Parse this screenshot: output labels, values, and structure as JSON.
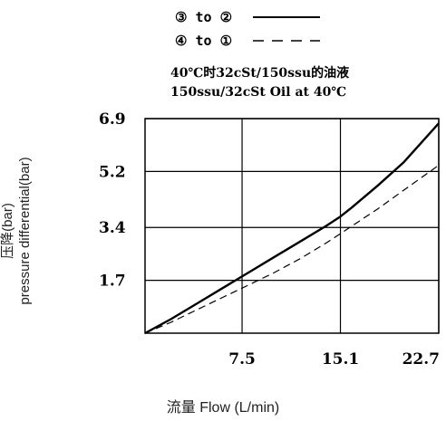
{
  "legend": [
    {
      "label": "③ to ②",
      "style": "solid"
    },
    {
      "label": "④ to ①",
      "style": "dashed"
    }
  ],
  "condition_cn": "40℃时32cSt/150ssu的油液",
  "condition_en": "150ssu/32cSt Oil at 40℃",
  "ylabel_cn": "压降(bar)",
  "ylabel_en": "pressure differential(bar)",
  "xlabel": "流量 Flow (L/min)",
  "chart_data": {
    "type": "line",
    "title": "",
    "xlabel": "流量 Flow (L/min)",
    "ylabel": "压降(bar) pressure differential(bar)",
    "xlim": [
      0,
      22.7
    ],
    "ylim": [
      0,
      6.9
    ],
    "x_ticks": [
      7.5,
      15.1,
      22.7
    ],
    "x_tick_labels": [
      "7.5",
      "15.1",
      "22.7"
    ],
    "y_ticks": [
      1.7,
      3.4,
      5.2,
      6.9
    ],
    "y_tick_labels": [
      "1.7",
      "3.4",
      "5.2",
      "6.9"
    ],
    "grid": true,
    "series": [
      {
        "name": "③ to ②",
        "style": "solid",
        "x": [
          0,
          2,
          4,
          6,
          8,
          10,
          12,
          14,
          15.1,
          16,
          18,
          20,
          22.7
        ],
        "y": [
          0,
          0.45,
          0.95,
          1.45,
          1.95,
          2.45,
          2.95,
          3.45,
          3.75,
          4.05,
          4.75,
          5.5,
          6.75
        ]
      },
      {
        "name": "④ to ①",
        "style": "dashed",
        "x": [
          0,
          2,
          4,
          6,
          8,
          10,
          12,
          14,
          15.1,
          16,
          18,
          20,
          22.7
        ],
        "y": [
          0,
          0.35,
          0.75,
          1.15,
          1.55,
          1.95,
          2.4,
          2.9,
          3.2,
          3.45,
          4.0,
          4.6,
          5.4
        ]
      }
    ]
  }
}
